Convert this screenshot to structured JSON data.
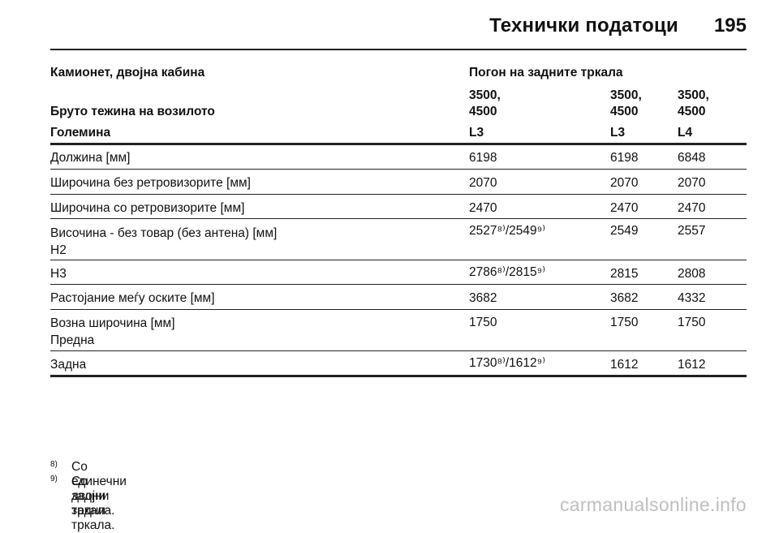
{
  "header": {
    "title": "Технички податоци",
    "page_number": "195"
  },
  "table": {
    "rows": [
      [
        "Камионет, двојна кабина",
        "Погон на задните тркала",
        "",
        ""
      ],
      [
        "Бруто тежина на возилото",
        "3500,\n4500",
        "3500,\n4500",
        "3500,\n4500"
      ],
      [
        "Големина",
        "L3",
        "L3",
        "L4"
      ],
      [
        "Должина [мм]",
        "6198",
        "6198",
        "6848"
      ],
      [
        "Широчина без ретровизорите [мм]",
        "2070",
        "2070",
        "2070"
      ],
      [
        "Широчина со ретровизорите [мм]",
        "2470",
        "2470",
        "2470"
      ],
      [
        "Височина - без товар (без антена) [мм]\nH2",
        "2527⁸⁾/2549⁹⁾",
        "2549",
        "2557"
      ],
      [
        "H3",
        "2786⁸⁾/2815⁹⁾",
        "2815",
        "2808"
      ],
      [
        "Растојание меѓу оските [мм]",
        "3682",
        "3682",
        "4332"
      ],
      [
        "Возна широчина [мм]\nПредна",
        "1750",
        "1750",
        "1750"
      ],
      [
        "Задна",
        "1730⁸⁾/1612⁹⁾",
        "1612",
        "1612"
      ]
    ]
  },
  "footnotes": [
    {
      "mark": "8)",
      "text": "Со единечни задни тркала."
    },
    {
      "mark": "9)",
      "text": "Со двојни задни тркала."
    }
  ],
  "watermark": "carmanualsonline.info"
}
